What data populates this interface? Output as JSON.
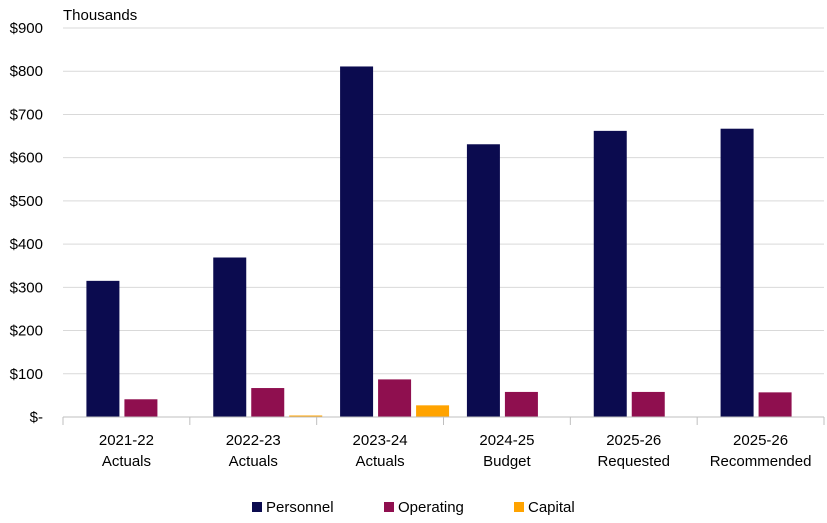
{
  "colors": {
    "personnel": "#0b0b4f",
    "operating": "#8f0f4f",
    "capital": "#ffa300",
    "gridline": "#d9d9d9",
    "axis": "#bfbfbf"
  },
  "chart_data": {
    "type": "bar",
    "unit_label": "Thousands",
    "categories": [
      [
        "2021-22",
        "Actuals"
      ],
      [
        "2022-23",
        "Actuals"
      ],
      [
        "2023-24",
        "Actuals"
      ],
      [
        "2024-25",
        "Budget"
      ],
      [
        "2025-26",
        "Requested"
      ],
      [
        "2025-26",
        "Recommended"
      ]
    ],
    "series": [
      {
        "name": "Personnel",
        "color_key": "personnel",
        "values": [
          315,
          369,
          811,
          631,
          662,
          667
        ]
      },
      {
        "name": "Operating",
        "color_key": "operating",
        "values": [
          41,
          67,
          87,
          58,
          58,
          57
        ]
      },
      {
        "name": "Capital",
        "color_key": "capital",
        "values": [
          0,
          2,
          27,
          0,
          0,
          0
        ]
      }
    ],
    "ylim": [
      0,
      900
    ],
    "yticks": [
      {
        "value": 0,
        "label": "$-"
      },
      {
        "value": 100,
        "label": "$100"
      },
      {
        "value": 200,
        "label": "$200"
      },
      {
        "value": 300,
        "label": "$300"
      },
      {
        "value": 400,
        "label": "$400"
      },
      {
        "value": 500,
        "label": "$500"
      },
      {
        "value": 600,
        "label": "$600"
      },
      {
        "value": 700,
        "label": "$700"
      },
      {
        "value": 800,
        "label": "$800"
      },
      {
        "value": 900,
        "label": "$900"
      }
    ],
    "grid": true,
    "legend_position": "bottom"
  }
}
